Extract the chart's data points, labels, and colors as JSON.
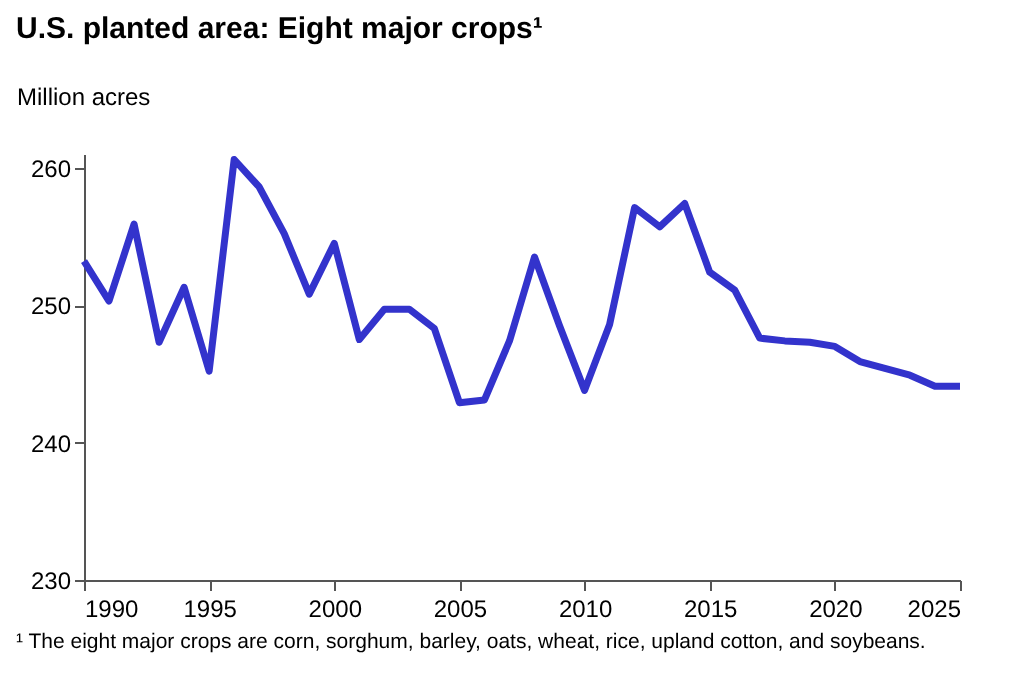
{
  "chart_data": {
    "type": "line",
    "title": "U.S. planted area: Eight major crops¹",
    "ylabel": "Million acres",
    "annotations": [
      "¹ The eight major crops are corn, sorghum, barley, oats, wheat, rice, upland cotton, and soybeans."
    ],
    "x": [
      1990,
      1991,
      1992,
      1993,
      1994,
      1995,
      1996,
      1997,
      1998,
      1999,
      2000,
      2001,
      2002,
      2003,
      2004,
      2005,
      2006,
      2007,
      2008,
      2009,
      2010,
      2011,
      2012,
      2013,
      2014,
      2015,
      2016,
      2017,
      2018,
      2019,
      2020,
      2021,
      2022,
      2023,
      2024,
      2025
    ],
    "series": [
      {
        "color": "#3333cc",
        "values": [
          253.2,
          250.3,
          255.9,
          247.3,
          251.3,
          245.2,
          260.6,
          258.6,
          255.2,
          250.8,
          254.5,
          247.5,
          249.7,
          249.7,
          248.3,
          242.9,
          243.1,
          247.4,
          253.5,
          248.5,
          243.8,
          248.6,
          257.1,
          255.7,
          257.4,
          252.4,
          251.1,
          247.6,
          247.4,
          247.3,
          247.0,
          245.9,
          245.4,
          244.9,
          244.1,
          244.1
        ]
      }
    ],
    "xlim": [
      1990,
      2025
    ],
    "xticks": [
      1990,
      1995,
      2000,
      2005,
      2010,
      2015,
      2020,
      2025
    ],
    "ylim": [
      230,
      261
    ],
    "yticks": [
      230,
      240,
      250,
      260
    ],
    "grid": false,
    "legend": false,
    "line_style": "solid",
    "marker": "none"
  }
}
